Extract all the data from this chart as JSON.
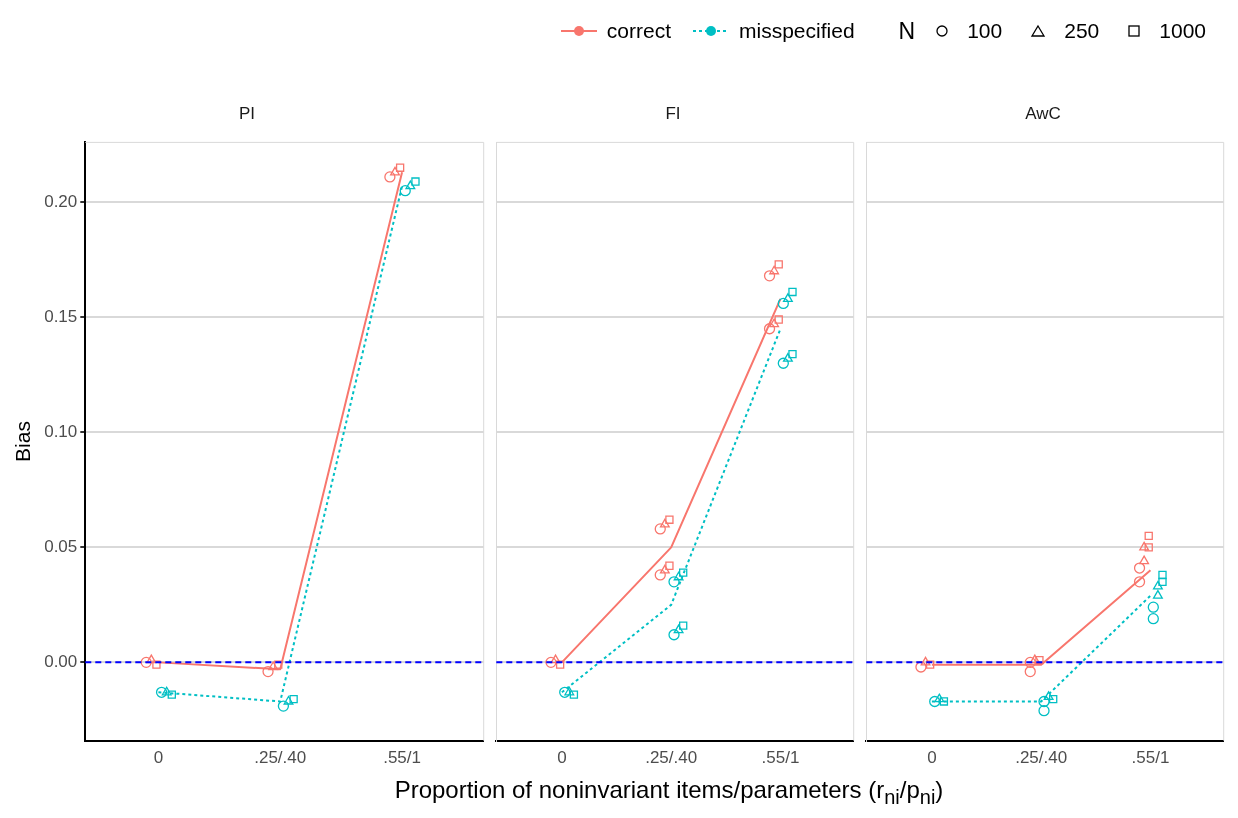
{
  "chart_data": [
    {
      "type": "line",
      "title": "PI",
      "ylabel": "Bias",
      "legend": "top right",
      "legend_title": "N",
      "annotations": [
        "100",
        "250",
        "1000"
      ],
      "categories": [
        "0",
        ".25/.40",
        ".55/1"
      ],
      "ylim": [
        -0.034,
        0.226
      ],
      "yticks": [
        {
          "value": 0,
          "label": "0.00"
        },
        {
          "value": 0.05,
          "label": "0.05"
        },
        {
          "value": 0.1,
          "label": "0.10"
        },
        {
          "value": 0.15,
          "label": "0.15"
        },
        {
          "value": 0.2,
          "label": "0.20"
        }
      ],
      "grid": "y",
      "ref_lines": [
        {
          "axis": "y",
          "value": 0,
          "color": "#0000ff",
          "line_style": "dashed"
        }
      ],
      "series": [
        {
          "name": "correct",
          "color": "#f8766d",
          "line_style": "solid",
          "values": [
            0,
            -0.003,
            0.213
          ]
        },
        {
          "name": "misspecified",
          "color": "#00bfc4",
          "line_style": "dotted",
          "values": [
            -0.013,
            -0.017,
            0.207
          ]
        },
        {
          "type": "scatter",
          "marker": "circle",
          "color": "#f8766d",
          "x": [
            "0",
            ".25/.40",
            ".55/1"
          ],
          "values": [
            0,
            -0.004,
            0.211
          ]
        },
        {
          "type": "scatter",
          "marker": "triangle",
          "color": "#f8766d",
          "x": [
            "0",
            ".25/.40",
            ".55/1"
          ],
          "values": [
            0.001,
            -0.002,
            0.213
          ]
        },
        {
          "type": "scatter",
          "marker": "square",
          "color": "#f8766d",
          "x": [
            "0",
            ".25/.40",
            ".55/1"
          ],
          "values": [
            -0.001,
            -0.001,
            0.215
          ]
        },
        {
          "type": "scatter",
          "marker": "circle",
          "color": "#00bfc4",
          "x": [
            "0",
            ".25/.40",
            ".55/1"
          ],
          "values": [
            -0.013,
            -0.019,
            0.205
          ]
        },
        {
          "type": "scatter",
          "marker": "triangle",
          "color": "#00bfc4",
          "x": [
            "0",
            ".25/.40",
            ".55/1"
          ],
          "values": [
            -0.013,
            -0.017,
            0.207
          ]
        },
        {
          "type": "scatter",
          "marker": "square",
          "color": "#00bfc4",
          "x": [
            "0",
            ".25/.40",
            ".55/1"
          ],
          "values": [
            -0.014,
            -0.016,
            0.209
          ]
        }
      ]
    },
    {
      "type": "line",
      "title": "FI",
      "xlabel": "Proportion of noninvariant items/parameters (r$_{ni}$/p$_{ni}$)",
      "tick_labels": "x",
      "categories": [
        "0",
        ".25/.40",
        ".55/1"
      ],
      "ylim": [
        -0.034,
        0.226
      ],
      "yticks": [
        {
          "value": 0,
          "label": null
        },
        {
          "value": 0.05,
          "label": null
        },
        {
          "value": 0.1,
          "label": null
        },
        {
          "value": 0.15,
          "label": null
        },
        {
          "value": 0.2,
          "label": null
        }
      ],
      "grid": "y",
      "ref_lines": [
        {
          "axis": "y",
          "value": 0,
          "color": "#0000ff",
          "line_style": "dashed"
        }
      ],
      "series": [
        {
          "color": "#f8766d",
          "line_style": "solid",
          "values": [
            0,
            0.05,
            0.158
          ]
        },
        {
          "color": "#00bfc4",
          "line_style": "dotted",
          "values": [
            -0.013,
            0.025,
            0.145
          ]
        },
        {
          "type": "scatter",
          "marker": "circle",
          "color": "#f8766d",
          "x": [
            "0",
            ".25/.40",
            ".25/.40",
            ".55/1",
            ".55/1"
          ],
          "values": [
            0,
            0.058,
            0.038,
            0.168,
            0.145
          ]
        },
        {
          "type": "scatter",
          "marker": "triangle",
          "color": "#f8766d",
          "x": [
            "0",
            ".25/.40",
            ".25/.40",
            ".55/1",
            ".55/1"
          ],
          "values": [
            0.001,
            0.06,
            0.04,
            0.17,
            0.147
          ]
        },
        {
          "type": "scatter",
          "marker": "square",
          "color": "#f8766d",
          "x": [
            "0",
            ".25/.40",
            ".25/.40",
            ".55/1",
            ".55/1"
          ],
          "values": [
            -0.001,
            0.062,
            0.042,
            0.173,
            0.149
          ]
        },
        {
          "type": "scatter",
          "marker": "circle",
          "color": "#00bfc4",
          "x": [
            "0",
            ".25/.40",
            ".25/.40",
            ".55/1",
            ".55/1"
          ],
          "values": [
            -0.013,
            0.035,
            0.012,
            0.156,
            0.13
          ]
        },
        {
          "type": "scatter",
          "marker": "triangle",
          "color": "#00bfc4",
          "x": [
            "0",
            ".25/.40",
            ".25/.40",
            ".55/1",
            ".55/1"
          ],
          "values": [
            -0.013,
            0.037,
            0.014,
            0.158,
            0.132
          ]
        },
        {
          "type": "scatter",
          "marker": "square",
          "color": "#00bfc4",
          "x": [
            "0",
            ".25/.40",
            ".25/.40",
            ".55/1",
            ".55/1"
          ],
          "values": [
            -0.014,
            0.039,
            0.016,
            0.161,
            0.134
          ]
        }
      ]
    },
    {
      "type": "line",
      "title": "AwC",
      "tick_labels": "x",
      "categories": [
        "0",
        ".25/.40",
        ".55/1"
      ],
      "ylim": [
        -0.034,
        0.226
      ],
      "yticks": [
        {
          "value": 0,
          "label": null
        },
        {
          "value": 0.05,
          "label": null
        },
        {
          "value": 0.1,
          "label": null
        },
        {
          "value": 0.15,
          "label": null
        },
        {
          "value": 0.2,
          "label": null
        }
      ],
      "grid": "y",
      "ref_lines": [
        {
          "axis": "y",
          "value": 0,
          "color": "#0000ff",
          "line_style": "dashed"
        }
      ],
      "series": [
        {
          "color": "#f8766d",
          "line_style": "solid",
          "values": [
            -0.001,
            -0.001,
            0.04
          ]
        },
        {
          "color": "#00bfc4",
          "line_style": "dotted",
          "values": [
            -0.017,
            -0.017,
            0.029
          ]
        },
        {
          "type": "scatter",
          "marker": "circle",
          "color": "#f8766d",
          "x": [
            "0",
            ".25/.40",
            ".25/.40",
            ".55/1",
            ".55/1"
          ],
          "values": [
            -0.002,
            0,
            -0.004,
            0.041,
            0.035
          ]
        },
        {
          "type": "scatter",
          "marker": "triangle",
          "color": "#f8766d",
          "x": [
            "0",
            ".25/.40",
            ".55/1",
            ".55/1"
          ],
          "values": [
            0,
            0.001,
            0.05,
            0.044
          ]
        },
        {
          "type": "scatter",
          "marker": "square",
          "color": "#f8766d",
          "x": [
            "0",
            ".25/.40",
            ".55/1",
            ".55/1"
          ],
          "values": [
            -0.001,
            0.001,
            0.055,
            0.05
          ]
        },
        {
          "type": "scatter",
          "marker": "circle",
          "color": "#00bfc4",
          "x": [
            "0",
            ".25/.40",
            ".25/.40",
            ".55/1",
            ".55/1"
          ],
          "values": [
            -0.017,
            -0.017,
            -0.021,
            0.024,
            0.019
          ]
        },
        {
          "type": "scatter",
          "marker": "triangle",
          "color": "#00bfc4",
          "x": [
            "0",
            ".25/.40",
            ".55/1",
            ".55/1"
          ],
          "values": [
            -0.016,
            -0.015,
            0.033,
            0.029
          ]
        },
        {
          "type": "scatter",
          "marker": "square",
          "color": "#00bfc4",
          "x": [
            "0",
            ".25/.40",
            ".55/1",
            ".55/1"
          ],
          "values": [
            -0.017,
            -0.016,
            0.038,
            0.035
          ]
        }
      ]
    }
  ]
}
